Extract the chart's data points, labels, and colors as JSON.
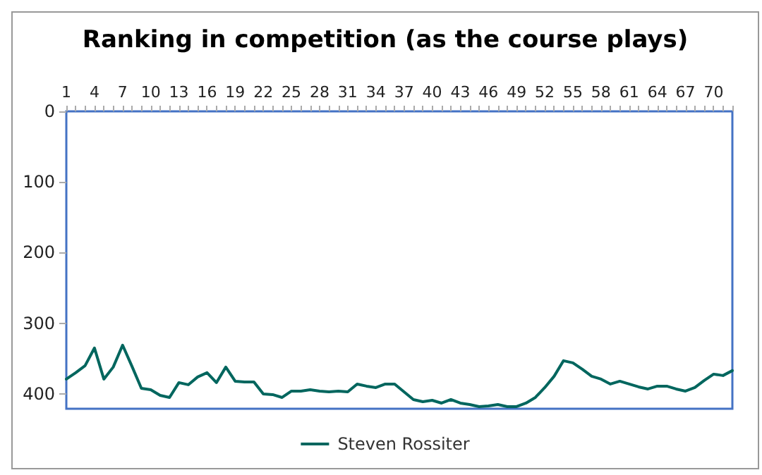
{
  "chart_data": {
    "type": "line",
    "title": "Ranking in competition (as the course plays)",
    "categories": [
      "1",
      null,
      null,
      "4",
      null,
      null,
      "7",
      null,
      null,
      "10",
      null,
      null,
      "13",
      null,
      null,
      "16",
      null,
      null,
      "19",
      null,
      null,
      "22",
      null,
      null,
      "25",
      null,
      null,
      "28",
      null,
      null,
      "31",
      null,
      null,
      "34",
      null,
      null,
      "37",
      null,
      null,
      "40",
      null,
      null,
      "43",
      null,
      null,
      "46",
      null,
      null,
      "49",
      null,
      null,
      "52",
      null,
      null,
      "55",
      null,
      null,
      "58",
      null,
      null,
      "61",
      null,
      null,
      "64",
      null,
      null,
      "67",
      null,
      null,
      "70",
      null,
      null
    ],
    "series": [
      {
        "name": "Steven Rossiter",
        "color": "#00665e",
        "values": [
          379,
          370,
          360,
          335,
          379,
          362,
          331,
          361,
          392,
          394,
          402,
          405,
          384,
          387,
          376,
          370,
          384,
          362,
          382,
          383,
          383,
          400,
          401,
          405,
          396,
          396,
          394,
          396,
          397,
          396,
          397,
          386,
          389,
          391,
          386,
          386,
          397,
          408,
          411,
          409,
          413,
          408,
          413,
          415,
          418,
          417,
          415,
          418,
          418,
          413,
          405,
          391,
          375,
          353,
          356,
          365,
          375,
          379,
          386,
          382,
          386,
          390,
          393,
          389,
          389,
          393,
          396,
          391,
          381,
          372,
          374,
          367
        ]
      }
    ],
    "ylim": [
      421,
      0
    ],
    "yticks": [
      0,
      100,
      200,
      300,
      400
    ],
    "grid": false,
    "legend": "bottom",
    "marker": "none",
    "line_style": "solid"
  }
}
